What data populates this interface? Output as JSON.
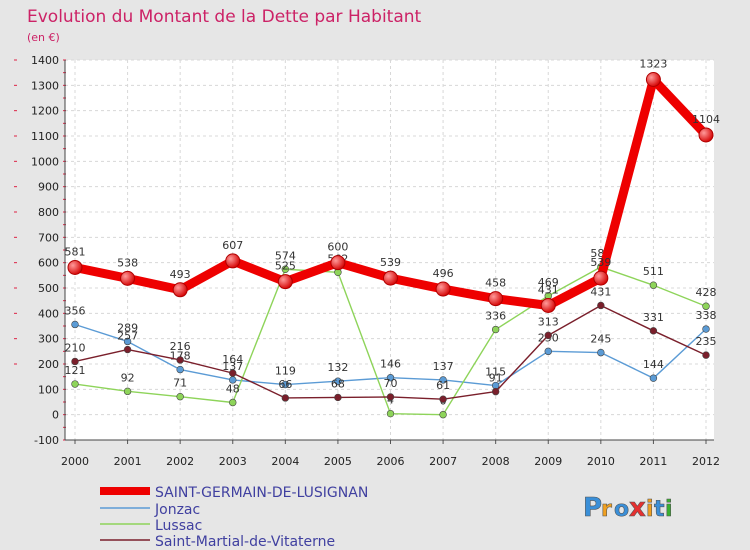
{
  "chart_data": {
    "type": "line",
    "title": "Evolution du Montant de la Dette par Habitant",
    "subtitle": "(en €)",
    "x": [
      2000,
      2001,
      2002,
      2003,
      2004,
      2005,
      2006,
      2007,
      2008,
      2009,
      2010,
      2011,
      2012
    ],
    "x_tick_labels": [
      "2000",
      "2001",
      "2002",
      "2003",
      "2004",
      "2005",
      "2006",
      "2007",
      "2008",
      "2009",
      "2010",
      "2011",
      "2012"
    ],
    "ylim": [
      -100,
      1400
    ],
    "y_ticks": [
      -100,
      0,
      100,
      200,
      300,
      400,
      500,
      600,
      700,
      800,
      900,
      1000,
      1100,
      1200,
      1300,
      1400
    ],
    "y_tick_labels": [
      "-100",
      "0",
      "100",
      "200",
      "300",
      "400",
      "500",
      "600",
      "700",
      "800",
      "900",
      "1000",
      "1100",
      "1200",
      "1300",
      "1400"
    ],
    "grid": true,
    "legend_position": "bottom-left",
    "series": [
      {
        "name": "SAINT-GERMAIN-DE-LUSIGNAN",
        "color": "#ee0000",
        "values": [
          581,
          538,
          493,
          607,
          525,
          600,
          539,
          496,
          458,
          431,
          539,
          1323,
          1104
        ],
        "labels": [
          "581",
          "538",
          "493",
          "607",
          "525",
          "600",
          "539",
          "496",
          "458",
          "431",
          "539",
          "1323",
          "1104"
        ]
      },
      {
        "name": "Jonzac",
        "color": "#5b9bd5",
        "values": [
          356,
          289,
          178,
          137,
          119,
          132,
          146,
          137,
          115,
          250,
          245,
          144,
          338
        ],
        "labels": [
          "356",
          "289",
          "178",
          "137",
          "119",
          "132",
          "146",
          "137",
          "115",
          "250",
          "245",
          "144",
          "338"
        ]
      },
      {
        "name": "Lussac",
        "color": "#8ed45a",
        "values": [
          121,
          92,
          71,
          48,
          574,
          562,
          4,
          0,
          336,
          469,
          583,
          511,
          428
        ],
        "labels": [
          "121",
          "92",
          "71",
          "48",
          "574",
          "562",
          "4",
          "0",
          "336",
          "469",
          "583",
          "511",
          "428"
        ]
      },
      {
        "name": "Saint-Martial-de-Vitaterne",
        "color": "#7a1f2b",
        "values": [
          210,
          257,
          216,
          164,
          66,
          68,
          70,
          61,
          91,
          313,
          431,
          331,
          235
        ],
        "labels": [
          "210",
          "257",
          "216",
          "164",
          "66",
          "68",
          "70",
          "61",
          "91",
          "313",
          "431",
          "331",
          "235"
        ]
      }
    ]
  },
  "logo": {
    "text": "Proxiti",
    "letters": [
      "P",
      "r",
      "o",
      "x",
      "i",
      "t",
      "i"
    ],
    "colors": [
      "#3a8fd8",
      "#f0a020",
      "#3a8fd8",
      "#e63030",
      "#f0a020",
      "#3a8fd8",
      "#3ab030"
    ]
  }
}
